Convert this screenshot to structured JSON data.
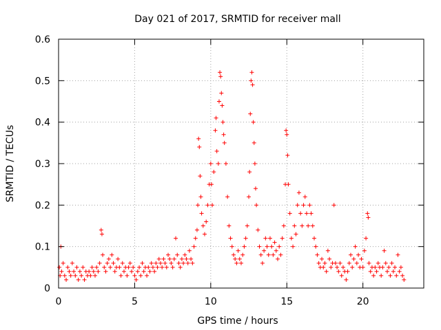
{
  "chart_data": {
    "type": "scatter",
    "title": "Day 021 of 2017, SRMTID for receiver mall",
    "xlabel": "GPS time / hours",
    "ylabel": "SRMTID / TECUs",
    "xlim": [
      0,
      24
    ],
    "ylim": [
      0,
      0.6
    ],
    "x_ticks": [
      0,
      5,
      10,
      15,
      20
    ],
    "x_tick_labels": [
      "0",
      "5",
      "10",
      "15",
      "20"
    ],
    "y_ticks": [
      0,
      0.1,
      0.2,
      0.3,
      0.4,
      0.5,
      0.6
    ],
    "y_tick_labels": [
      "0",
      "0.1",
      "0.2",
      "0.3",
      "0.4",
      "0.5",
      "0.6"
    ],
    "grid": true,
    "marker": "+",
    "series": [
      {
        "name": "SRMTID",
        "color": "#ff0000",
        "points": [
          [
            0.05,
            0.05
          ],
          [
            0.1,
            0.03
          ],
          [
            0.15,
            0.1
          ],
          [
            0.2,
            0.04
          ],
          [
            0.3,
            0.06
          ],
          [
            0.4,
            0.03
          ],
          [
            0.5,
            0.02
          ],
          [
            0.6,
            0.05
          ],
          [
            0.7,
            0.04
          ],
          [
            0.8,
            0.03
          ],
          [
            0.9,
            0.06
          ],
          [
            1.0,
            0.04
          ],
          [
            1.1,
            0.03
          ],
          [
            1.2,
            0.05
          ],
          [
            1.3,
            0.02
          ],
          [
            1.4,
            0.04
          ],
          [
            1.5,
            0.03
          ],
          [
            1.6,
            0.05
          ],
          [
            1.7,
            0.02
          ],
          [
            1.8,
            0.04
          ],
          [
            1.9,
            0.03
          ],
          [
            2.0,
            0.04
          ],
          [
            2.1,
            0.03
          ],
          [
            2.2,
            0.05
          ],
          [
            2.3,
            0.04
          ],
          [
            2.4,
            0.03
          ],
          [
            2.5,
            0.05
          ],
          [
            2.6,
            0.04
          ],
          [
            2.7,
            0.06
          ],
          [
            2.8,
            0.14
          ],
          [
            2.85,
            0.13
          ],
          [
            2.9,
            0.08
          ],
          [
            3.0,
            0.05
          ],
          [
            3.1,
            0.04
          ],
          [
            3.2,
            0.06
          ],
          [
            3.3,
            0.07
          ],
          [
            3.4,
            0.05
          ],
          [
            3.5,
            0.08
          ],
          [
            3.6,
            0.06
          ],
          [
            3.7,
            0.04
          ],
          [
            3.8,
            0.05
          ],
          [
            3.9,
            0.07
          ],
          [
            4.0,
            0.05
          ],
          [
            4.1,
            0.03
          ],
          [
            4.2,
            0.06
          ],
          [
            4.3,
            0.04
          ],
          [
            4.4,
            0.05
          ],
          [
            4.5,
            0.03
          ],
          [
            4.6,
            0.05
          ],
          [
            4.7,
            0.06
          ],
          [
            4.8,
            0.04
          ],
          [
            4.9,
            0.05
          ],
          [
            5.0,
            0.03
          ],
          [
            5.1,
            0.02
          ],
          [
            5.2,
            0.04
          ],
          [
            5.3,
            0.05
          ],
          [
            5.4,
            0.03
          ],
          [
            5.5,
            0.06
          ],
          [
            5.6,
            0.04
          ],
          [
            5.7,
            0.05
          ],
          [
            5.8,
            0.03
          ],
          [
            5.9,
            0.05
          ],
          [
            6.0,
            0.04
          ],
          [
            6.1,
            0.06
          ],
          [
            6.2,
            0.05
          ],
          [
            6.3,
            0.04
          ],
          [
            6.4,
            0.06
          ],
          [
            6.5,
            0.05
          ],
          [
            6.6,
            0.07
          ],
          [
            6.7,
            0.06
          ],
          [
            6.8,
            0.05
          ],
          [
            6.9,
            0.07
          ],
          [
            7.0,
            0.06
          ],
          [
            7.1,
            0.05
          ],
          [
            7.2,
            0.08
          ],
          [
            7.3,
            0.07
          ],
          [
            7.4,
            0.06
          ],
          [
            7.5,
            0.05
          ],
          [
            7.6,
            0.07
          ],
          [
            7.7,
            0.12
          ],
          [
            7.8,
            0.08
          ],
          [
            7.9,
            0.06
          ],
          [
            8.0,
            0.05
          ],
          [
            8.1,
            0.07
          ],
          [
            8.2,
            0.06
          ],
          [
            8.3,
            0.08
          ],
          [
            8.4,
            0.07
          ],
          [
            8.5,
            0.06
          ],
          [
            8.6,
            0.09
          ],
          [
            8.7,
            0.07
          ],
          [
            8.8,
            0.06
          ],
          [
            8.9,
            0.1
          ],
          [
            9.0,
            0.12
          ],
          [
            9.1,
            0.14
          ],
          [
            9.15,
            0.2
          ],
          [
            9.2,
            0.36
          ],
          [
            9.25,
            0.34
          ],
          [
            9.3,
            0.27
          ],
          [
            9.35,
            0.22
          ],
          [
            9.4,
            0.18
          ],
          [
            9.5,
            0.15
          ],
          [
            9.6,
            0.13
          ],
          [
            9.7,
            0.16
          ],
          [
            9.8,
            0.2
          ],
          [
            9.9,
            0.25
          ],
          [
            10.0,
            0.3
          ],
          [
            10.05,
            0.25
          ],
          [
            10.1,
            0.2
          ],
          [
            10.2,
            0.28
          ],
          [
            10.3,
            0.38
          ],
          [
            10.35,
            0.41
          ],
          [
            10.4,
            0.33
          ],
          [
            10.5,
            0.3
          ],
          [
            10.55,
            0.45
          ],
          [
            10.6,
            0.52
          ],
          [
            10.65,
            0.51
          ],
          [
            10.7,
            0.47
          ],
          [
            10.75,
            0.44
          ],
          [
            10.8,
            0.4
          ],
          [
            10.85,
            0.37
          ],
          [
            10.9,
            0.35
          ],
          [
            11.0,
            0.3
          ],
          [
            11.1,
            0.22
          ],
          [
            11.2,
            0.15
          ],
          [
            11.3,
            0.12
          ],
          [
            11.4,
            0.1
          ],
          [
            11.5,
            0.08
          ],
          [
            11.6,
            0.07
          ],
          [
            11.7,
            0.06
          ],
          [
            11.8,
            0.09
          ],
          [
            11.9,
            0.07
          ],
          [
            12.0,
            0.06
          ],
          [
            12.1,
            0.08
          ],
          [
            12.2,
            0.1
          ],
          [
            12.3,
            0.12
          ],
          [
            12.4,
            0.15
          ],
          [
            12.5,
            0.22
          ],
          [
            12.55,
            0.28
          ],
          [
            12.6,
            0.42
          ],
          [
            12.65,
            0.5
          ],
          [
            12.7,
            0.52
          ],
          [
            12.75,
            0.49
          ],
          [
            12.8,
            0.4
          ],
          [
            12.85,
            0.35
          ],
          [
            12.9,
            0.3
          ],
          [
            12.95,
            0.24
          ],
          [
            13.0,
            0.2
          ],
          [
            13.1,
            0.14
          ],
          [
            13.2,
            0.1
          ],
          [
            13.3,
            0.08
          ],
          [
            13.4,
            0.06
          ],
          [
            13.5,
            0.09
          ],
          [
            13.6,
            0.12
          ],
          [
            13.7,
            0.1
          ],
          [
            13.8,
            0.08
          ],
          [
            13.9,
            0.12
          ],
          [
            14.0,
            0.1
          ],
          [
            14.1,
            0.08
          ],
          [
            14.2,
            0.11
          ],
          [
            14.3,
            0.09
          ],
          [
            14.4,
            0.07
          ],
          [
            14.5,
            0.1
          ],
          [
            14.6,
            0.08
          ],
          [
            14.7,
            0.12
          ],
          [
            14.8,
            0.15
          ],
          [
            14.9,
            0.25
          ],
          [
            14.95,
            0.38
          ],
          [
            15.0,
            0.37
          ],
          [
            15.05,
            0.32
          ],
          [
            15.1,
            0.25
          ],
          [
            15.2,
            0.18
          ],
          [
            15.3,
            0.12
          ],
          [
            15.4,
            0.1
          ],
          [
            15.5,
            0.15
          ],
          [
            15.6,
            0.13
          ],
          [
            15.7,
            0.2
          ],
          [
            15.8,
            0.23
          ],
          [
            15.9,
            0.18
          ],
          [
            16.0,
            0.15
          ],
          [
            16.1,
            0.2
          ],
          [
            16.2,
            0.22
          ],
          [
            16.3,
            0.18
          ],
          [
            16.4,
            0.15
          ],
          [
            16.5,
            0.2
          ],
          [
            16.6,
            0.18
          ],
          [
            16.7,
            0.15
          ],
          [
            16.8,
            0.12
          ],
          [
            16.9,
            0.1
          ],
          [
            17.0,
            0.08
          ],
          [
            17.1,
            0.06
          ],
          [
            17.2,
            0.05
          ],
          [
            17.3,
            0.07
          ],
          [
            17.4,
            0.05
          ],
          [
            17.5,
            0.06
          ],
          [
            17.6,
            0.04
          ],
          [
            17.7,
            0.09
          ],
          [
            17.8,
            0.07
          ],
          [
            17.9,
            0.05
          ],
          [
            18.0,
            0.06
          ],
          [
            18.1,
            0.2
          ],
          [
            18.2,
            0.06
          ],
          [
            18.3,
            0.05
          ],
          [
            18.4,
            0.04
          ],
          [
            18.5,
            0.06
          ],
          [
            18.6,
            0.03
          ],
          [
            18.7,
            0.05
          ],
          [
            18.8,
            0.04
          ],
          [
            18.9,
            0.02
          ],
          [
            19.0,
            0.04
          ],
          [
            19.1,
            0.06
          ],
          [
            19.2,
            0.08
          ],
          [
            19.3,
            0.05
          ],
          [
            19.4,
            0.07
          ],
          [
            19.5,
            0.1
          ],
          [
            19.6,
            0.06
          ],
          [
            19.7,
            0.08
          ],
          [
            19.8,
            0.05
          ],
          [
            19.9,
            0.07
          ],
          [
            20.0,
            0.05
          ],
          [
            20.1,
            0.09
          ],
          [
            20.2,
            0.12
          ],
          [
            20.3,
            0.18
          ],
          [
            20.35,
            0.17
          ],
          [
            20.4,
            0.06
          ],
          [
            20.5,
            0.04
          ],
          [
            20.6,
            0.05
          ],
          [
            20.7,
            0.03
          ],
          [
            20.8,
            0.05
          ],
          [
            20.9,
            0.04
          ],
          [
            21.0,
            0.06
          ],
          [
            21.1,
            0.05
          ],
          [
            21.2,
            0.03
          ],
          [
            21.3,
            0.05
          ],
          [
            21.4,
            0.09
          ],
          [
            21.5,
            0.06
          ],
          [
            21.6,
            0.04
          ],
          [
            21.7,
            0.05
          ],
          [
            21.8,
            0.03
          ],
          [
            21.9,
            0.06
          ],
          [
            22.0,
            0.04
          ],
          [
            22.1,
            0.05
          ],
          [
            22.2,
            0.03
          ],
          [
            22.3,
            0.08
          ],
          [
            22.4,
            0.04
          ],
          [
            22.5,
            0.05
          ],
          [
            22.6,
            0.03
          ],
          [
            22.7,
            0.02
          ]
        ]
      }
    ]
  }
}
